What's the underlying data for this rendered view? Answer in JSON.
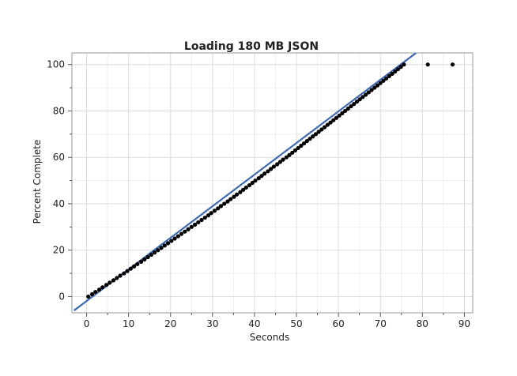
{
  "chart_data": {
    "type": "scatter",
    "title": "Loading 180 MB JSON",
    "xlabel": "Seconds",
    "ylabel": "Percent Complete",
    "xlim": [
      -3.5,
      92
    ],
    "ylim": [
      -7,
      105
    ],
    "x_ticks": [
      0,
      10,
      20,
      30,
      40,
      50,
      60,
      70,
      80,
      90
    ],
    "y_ticks": [
      0,
      20,
      40,
      60,
      80,
      100
    ],
    "grid": true,
    "fit_line": {
      "color": "#4169b0",
      "x": [
        -3,
        78.5
      ],
      "y": [
        -6,
        105
      ]
    },
    "series": [
      {
        "color": "#000000",
        "points": [
          [
            0.4,
            0
          ],
          [
            1.3,
            1
          ],
          [
            2.1,
            2
          ],
          [
            3.0,
            3
          ],
          [
            3.8,
            4
          ],
          [
            4.7,
            5
          ],
          [
            5.5,
            6
          ],
          [
            6.4,
            7
          ],
          [
            7.2,
            8
          ],
          [
            8.0,
            9
          ],
          [
            8.9,
            10
          ],
          [
            9.7,
            11
          ],
          [
            10.5,
            12
          ],
          [
            11.3,
            13
          ],
          [
            12.1,
            14
          ],
          [
            13.0,
            15
          ],
          [
            13.8,
            16
          ],
          [
            14.6,
            17
          ],
          [
            15.4,
            18
          ],
          [
            16.2,
            19
          ],
          [
            17.0,
            20
          ],
          [
            17.8,
            21
          ],
          [
            18.6,
            22
          ],
          [
            19.4,
            23
          ],
          [
            20.2,
            24
          ],
          [
            21.0,
            25
          ],
          [
            21.8,
            26
          ],
          [
            22.6,
            27
          ],
          [
            23.4,
            28
          ],
          [
            24.2,
            29
          ],
          [
            25.0,
            30
          ],
          [
            25.8,
            31
          ],
          [
            26.6,
            32
          ],
          [
            27.4,
            33
          ],
          [
            28.2,
            34
          ],
          [
            29.0,
            35
          ],
          [
            29.7,
            36
          ],
          [
            30.5,
            37
          ],
          [
            31.3,
            38
          ],
          [
            32.0,
            39
          ],
          [
            32.8,
            40
          ],
          [
            33.6,
            41
          ],
          [
            34.3,
            42
          ],
          [
            35.1,
            43
          ],
          [
            35.8,
            44
          ],
          [
            36.6,
            45
          ],
          [
            37.3,
            46
          ],
          [
            38.0,
            47
          ],
          [
            38.8,
            48
          ],
          [
            39.5,
            49
          ],
          [
            40.2,
            50
          ],
          [
            41.0,
            51
          ],
          [
            41.7,
            52
          ],
          [
            42.4,
            53
          ],
          [
            43.2,
            54
          ],
          [
            43.9,
            55
          ],
          [
            44.6,
            56
          ],
          [
            45.4,
            57
          ],
          [
            46.1,
            58
          ],
          [
            46.8,
            59
          ],
          [
            47.6,
            60
          ],
          [
            48.3,
            61
          ],
          [
            49.0,
            62
          ],
          [
            49.7,
            63
          ],
          [
            50.4,
            64
          ],
          [
            51.1,
            65
          ],
          [
            51.8,
            66
          ],
          [
            52.5,
            67
          ],
          [
            53.2,
            68
          ],
          [
            53.9,
            69
          ],
          [
            54.6,
            70
          ],
          [
            55.3,
            71
          ],
          [
            56.0,
            72
          ],
          [
            56.7,
            73
          ],
          [
            57.4,
            74
          ],
          [
            58.1,
            75
          ],
          [
            58.8,
            76
          ],
          [
            59.5,
            77
          ],
          [
            60.2,
            78
          ],
          [
            60.9,
            79
          ],
          [
            61.6,
            80
          ],
          [
            62.3,
            81
          ],
          [
            63.0,
            82
          ],
          [
            63.7,
            83
          ],
          [
            64.4,
            84
          ],
          [
            65.1,
            85
          ],
          [
            65.8,
            86
          ],
          [
            66.5,
            87
          ],
          [
            67.2,
            88
          ],
          [
            67.9,
            89
          ],
          [
            68.6,
            90
          ],
          [
            69.3,
            91
          ],
          [
            70.0,
            92
          ],
          [
            70.7,
            93
          ],
          [
            71.4,
            94
          ],
          [
            72.1,
            95
          ],
          [
            72.8,
            96
          ],
          [
            73.5,
            97
          ],
          [
            74.2,
            98
          ],
          [
            74.9,
            99
          ],
          [
            75.6,
            100
          ],
          [
            81.3,
            100
          ],
          [
            87.2,
            100
          ]
        ]
      }
    ]
  }
}
